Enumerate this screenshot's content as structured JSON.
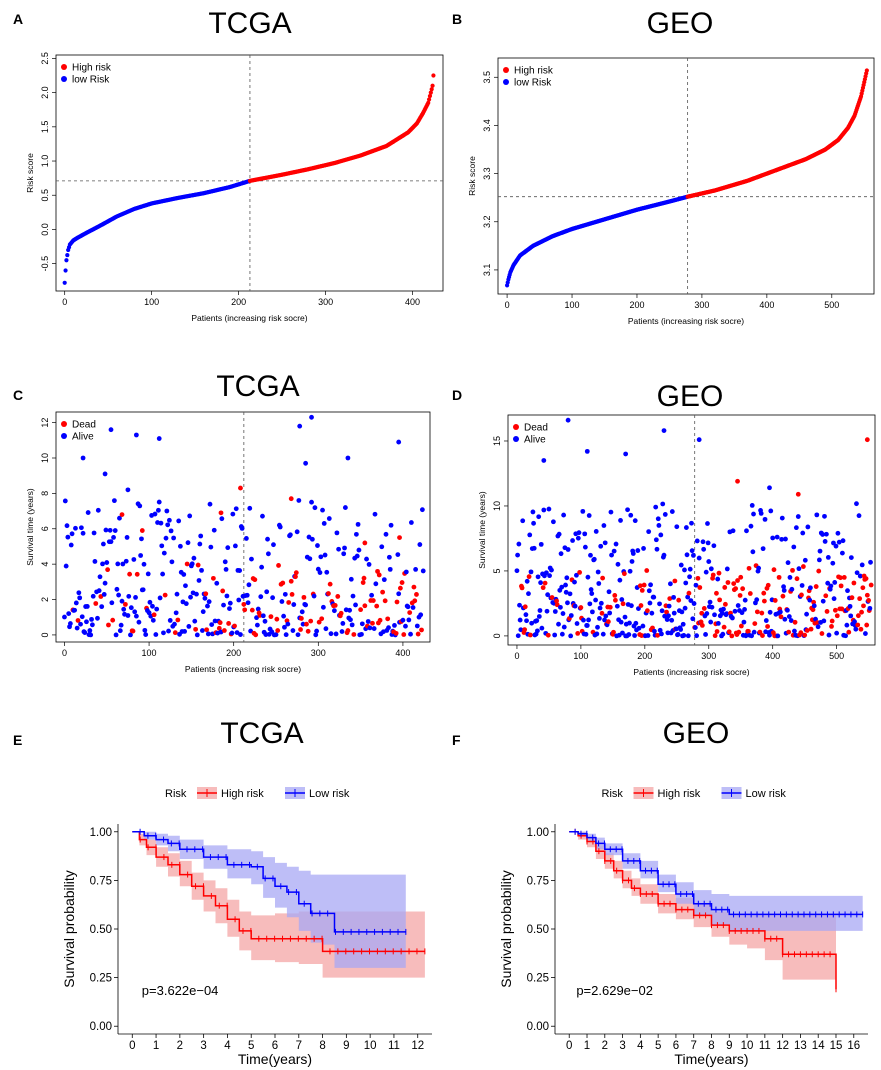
{
  "colors": {
    "high": "#ff0000",
    "low": "#0000ff",
    "high_band": "#f4a6a6",
    "low_band": "#a8a8f4"
  },
  "chart_data": [
    {
      "panel": "A",
      "type": "scatter",
      "title": "TCGA",
      "xlabel": "Patients (increasing risk socre)",
      "ylabel": "Risk score",
      "xlim": [
        -10,
        435
      ],
      "ylim": [
        -0.9,
        2.55
      ],
      "xticks": [
        "0",
        "100",
        "200",
        "300",
        "400"
      ],
      "xtick_values": [
        0,
        100,
        200,
        300,
        400
      ],
      "yticks": [
        "-0.5",
        "0.0",
        "0.5",
        "1.0",
        "1.5",
        "2.0",
        "2.5"
      ],
      "ytick_values": [
        -0.5,
        0,
        0.5,
        1,
        1.5,
        2,
        2.5
      ],
      "legend": [
        "High risk",
        "low Risk"
      ],
      "legend_position": "top-left",
      "n_patients": 425,
      "cutoff_index": 213,
      "cutoff_value": 0.71,
      "curve_x": [
        0,
        1,
        2,
        4,
        6,
        10,
        15,
        25,
        40,
        60,
        80,
        100,
        130,
        160,
        190,
        213,
        250,
        280,
        310,
        340,
        370,
        395,
        405,
        412,
        418,
        421,
        423,
        425
      ],
      "curve_y": [
        -0.78,
        -0.6,
        -0.45,
        -0.3,
        -0.22,
        -0.16,
        -0.12,
        -0.05,
        0.05,
        0.19,
        0.3,
        0.38,
        0.46,
        0.53,
        0.62,
        0.71,
        0.8,
        0.88,
        0.97,
        1.08,
        1.22,
        1.42,
        1.55,
        1.7,
        1.85,
        2.0,
        2.1,
        2.4
      ]
    },
    {
      "panel": "B",
      "type": "scatter",
      "title": "GEO",
      "xlabel": "Patients (increasing risk socre)",
      "ylabel": "Risk score",
      "xlim": [
        -14,
        565
      ],
      "ylim": [
        3.05,
        3.54
      ],
      "xticks": [
        "0",
        "100",
        "200",
        "300",
        "400",
        "500"
      ],
      "xtick_values": [
        0,
        100,
        200,
        300,
        400,
        500
      ],
      "yticks": [
        "3.1",
        "3.2",
        "3.3",
        "3.4",
        "3.5"
      ],
      "ytick_values": [
        3.1,
        3.2,
        3.3,
        3.4,
        3.5
      ],
      "legend": [
        "High risk",
        "low Risk"
      ],
      "legend_position": "top-left",
      "n_patients": 555,
      "cutoff_index": 278,
      "cutoff_value": 3.252,
      "curve_x": [
        0,
        2,
        5,
        10,
        20,
        40,
        70,
        100,
        150,
        200,
        250,
        278,
        320,
        370,
        420,
        460,
        490,
        510,
        525,
        535,
        545,
        550,
        555
      ],
      "curve_y": [
        3.068,
        3.08,
        3.095,
        3.11,
        3.13,
        3.15,
        3.17,
        3.185,
        3.205,
        3.225,
        3.242,
        3.252,
        3.265,
        3.285,
        3.31,
        3.33,
        3.35,
        3.37,
        3.395,
        3.42,
        3.46,
        3.49,
        3.52
      ]
    },
    {
      "panel": "C",
      "type": "scatter",
      "title": "TCGA",
      "xlabel": "Patients (increasing risk socre)",
      "ylabel": "Survival time (years)",
      "xlim": [
        -10,
        432
      ],
      "ylim": [
        -0.4,
        12.6
      ],
      "xticks": [
        "0",
        "100",
        "200",
        "300",
        "400"
      ],
      "xtick_values": [
        0,
        100,
        200,
        300,
        400
      ],
      "yticks": [
        "0",
        "2",
        "4",
        "6",
        "8",
        "10",
        "12"
      ],
      "ytick_values": [
        0,
        2,
        4,
        6,
        8,
        10,
        12
      ],
      "legend": [
        "Dead",
        "Alive"
      ],
      "legend_position": "top-left",
      "n_patients": 425,
      "cutoff_index": 212,
      "note": "points: survival time per patient; red = dead, blue = alive; dead fraction rises right of cutoff",
      "highlight_points": [
        {
          "x": 22,
          "y": 10.0,
          "status": "Alive"
        },
        {
          "x": 55,
          "y": 11.6,
          "status": "Alive"
        },
        {
          "x": 85,
          "y": 11.3,
          "status": "Alive"
        },
        {
          "x": 112,
          "y": 11.1,
          "status": "Alive"
        },
        {
          "x": 48,
          "y": 9.1,
          "status": "Alive"
        },
        {
          "x": 75,
          "y": 8.2,
          "status": "Alive"
        },
        {
          "x": 68,
          "y": 6.8,
          "status": "Dead"
        },
        {
          "x": 92,
          "y": 5.9,
          "status": "Dead"
        },
        {
          "x": 208,
          "y": 8.3,
          "status": "Dead"
        },
        {
          "x": 185,
          "y": 6.9,
          "status": "Dead"
        },
        {
          "x": 268,
          "y": 7.7,
          "status": "Dead"
        },
        {
          "x": 278,
          "y": 11.8,
          "status": "Alive"
        },
        {
          "x": 292,
          "y": 12.3,
          "status": "Alive"
        },
        {
          "x": 285,
          "y": 9.7,
          "status": "Alive"
        },
        {
          "x": 335,
          "y": 10.0,
          "status": "Alive"
        },
        {
          "x": 395,
          "y": 10.9,
          "status": "Alive"
        },
        {
          "x": 396,
          "y": 5.5,
          "status": "Dead"
        },
        {
          "x": 355,
          "y": 5.2,
          "status": "Dead"
        }
      ]
    },
    {
      "panel": "D",
      "type": "scatter",
      "title": "GEO",
      "xlabel": "Patients (increasing risk socre)",
      "ylabel": "Survival time (years)",
      "xlim": [
        -14,
        560
      ],
      "ylim": [
        -0.7,
        17.0
      ],
      "xticks": [
        "0",
        "100",
        "200",
        "300",
        "400",
        "500"
      ],
      "xtick_values": [
        0,
        100,
        200,
        300,
        400,
        500
      ],
      "yticks": [
        "0",
        "5",
        "10",
        "15"
      ],
      "ytick_values": [
        0,
        5,
        10,
        15
      ],
      "legend": [
        "Dead",
        "Alive"
      ],
      "legend_position": "top-left",
      "n_patients": 555,
      "cutoff_index": 278,
      "note": "points: survival time per patient; red = dead, blue = alive; dead fraction rises right of cutoff",
      "highlight_points": [
        {
          "x": 80,
          "y": 16.6,
          "status": "Alive"
        },
        {
          "x": 230,
          "y": 15.8,
          "status": "Alive"
        },
        {
          "x": 285,
          "y": 15.1,
          "status": "Alive"
        },
        {
          "x": 548,
          "y": 15.1,
          "status": "Dead"
        },
        {
          "x": 110,
          "y": 14.2,
          "status": "Alive"
        },
        {
          "x": 170,
          "y": 14.0,
          "status": "Alive"
        },
        {
          "x": 42,
          "y": 13.5,
          "status": "Alive"
        },
        {
          "x": 440,
          "y": 10.9,
          "status": "Dead"
        },
        {
          "x": 345,
          "y": 11.9,
          "status": "Dead"
        },
        {
          "x": 395,
          "y": 11.4,
          "status": "Alive"
        }
      ]
    },
    {
      "panel": "E",
      "type": "line",
      "title": "TCGA",
      "xlabel": "Time(years)",
      "ylabel": "Survival probability",
      "xlim": [
        -0.6,
        12.6
      ],
      "ylim": [
        -0.04,
        1.04
      ],
      "xticks": [
        "0",
        "1",
        "2",
        "3",
        "4",
        "5",
        "6",
        "7",
        "8",
        "9",
        "10",
        "11",
        "12"
      ],
      "xtick_values": [
        0,
        1,
        2,
        3,
        4,
        5,
        6,
        7,
        8,
        9,
        10,
        11,
        12
      ],
      "yticks": [
        "0.00",
        "0.25",
        "0.50",
        "0.75",
        "1.00"
      ],
      "ytick_values": [
        0,
        0.25,
        0.5,
        0.75,
        1.0
      ],
      "legend_title": "Risk",
      "legend": [
        "High risk",
        "Low risk"
      ],
      "legend_position": "top",
      "pvalue": "p=3.622e−04",
      "series": [
        {
          "name": "High risk",
          "x": [
            0,
            0.3,
            0.6,
            1.0,
            1.5,
            2.0,
            2.5,
            3.0,
            3.5,
            4.0,
            4.5,
            5.0,
            5.5,
            6.0,
            7.0,
            8.0,
            9.0,
            10.0,
            12.3
          ],
          "y": [
            1.0,
            0.96,
            0.92,
            0.87,
            0.83,
            0.78,
            0.72,
            0.67,
            0.62,
            0.55,
            0.49,
            0.45,
            0.45,
            0.45,
            0.45,
            0.385,
            0.385,
            0.385,
            0.385
          ],
          "lower": [
            1.0,
            0.93,
            0.88,
            0.82,
            0.77,
            0.72,
            0.65,
            0.59,
            0.53,
            0.46,
            0.39,
            0.34,
            0.34,
            0.33,
            0.32,
            0.25,
            0.25,
            0.25,
            0.25
          ],
          "upper": [
            1.0,
            0.99,
            0.96,
            0.92,
            0.89,
            0.85,
            0.79,
            0.75,
            0.71,
            0.65,
            0.59,
            0.57,
            0.57,
            0.58,
            0.59,
            0.59,
            0.59,
            0.59,
            0.59
          ]
        },
        {
          "name": "Low risk",
          "x": [
            0,
            0.5,
            1.0,
            1.5,
            2.0,
            3.0,
            4.0,
            5.0,
            5.5,
            6.0,
            6.5,
            7.0,
            7.5,
            8.0,
            8.5,
            11.5
          ],
          "y": [
            1.0,
            0.98,
            0.96,
            0.94,
            0.91,
            0.87,
            0.83,
            0.82,
            0.76,
            0.72,
            0.69,
            0.63,
            0.58,
            0.58,
            0.485,
            0.485
          ],
          "lower": [
            1.0,
            0.96,
            0.93,
            0.9,
            0.86,
            0.81,
            0.76,
            0.73,
            0.66,
            0.61,
            0.56,
            0.49,
            0.43,
            0.42,
            0.3,
            0.3
          ],
          "upper": [
            1.0,
            1.0,
            0.99,
            0.98,
            0.96,
            0.93,
            0.91,
            0.9,
            0.87,
            0.84,
            0.82,
            0.8,
            0.78,
            0.78,
            0.78,
            0.78
          ]
        }
      ]
    },
    {
      "panel": "F",
      "type": "line",
      "title": "GEO",
      "xlabel": "Time(years)",
      "ylabel": "Survival probability",
      "xlim": [
        -0.8,
        16.8
      ],
      "ylim": [
        -0.04,
        1.04
      ],
      "xticks": [
        "0",
        "1",
        "2",
        "3",
        "4",
        "5",
        "6",
        "7",
        "8",
        "9",
        "10",
        "11",
        "12",
        "13",
        "14",
        "15",
        "16"
      ],
      "xtick_values": [
        0,
        1,
        2,
        3,
        4,
        5,
        6,
        7,
        8,
        9,
        10,
        11,
        12,
        13,
        14,
        15,
        16
      ],
      "yticks": [
        "0.00",
        "0.25",
        "0.50",
        "0.75",
        "1.00"
      ],
      "ytick_values": [
        0,
        0.25,
        0.5,
        0.75,
        1.0
      ],
      "legend_title": "Risk",
      "legend": [
        "High risk",
        "Low risk"
      ],
      "legend_position": "top",
      "pvalue": "p=2.629e−02",
      "series": [
        {
          "name": "High risk",
          "x": [
            0,
            0.5,
            1.0,
            1.5,
            2.0,
            2.5,
            3.0,
            3.5,
            4.0,
            5.0,
            6.0,
            7.0,
            8.0,
            9.0,
            10.0,
            11.0,
            12.0,
            14.0,
            15.0
          ],
          "y": [
            1.0,
            0.98,
            0.95,
            0.9,
            0.85,
            0.8,
            0.75,
            0.71,
            0.68,
            0.63,
            0.6,
            0.57,
            0.52,
            0.49,
            0.49,
            0.45,
            0.37,
            0.37,
            0.19
          ],
          "lower": [
            1.0,
            0.96,
            0.92,
            0.86,
            0.81,
            0.76,
            0.71,
            0.67,
            0.63,
            0.58,
            0.55,
            0.51,
            0.46,
            0.42,
            0.4,
            0.34,
            0.24,
            0.24,
            0.24
          ],
          "upper": [
            1.0,
            1.0,
            0.97,
            0.93,
            0.89,
            0.85,
            0.8,
            0.76,
            0.73,
            0.68,
            0.66,
            0.63,
            0.59,
            0.57,
            0.57,
            0.57,
            0.57,
            0.57,
            0.57
          ]
        },
        {
          "name": "Low risk",
          "x": [
            0,
            0.5,
            1.0,
            1.5,
            2.0,
            3.0,
            4.0,
            5.0,
            6.0,
            7.0,
            8.0,
            9.0,
            16.5
          ],
          "y": [
            1.0,
            0.99,
            0.97,
            0.94,
            0.91,
            0.85,
            0.8,
            0.73,
            0.68,
            0.63,
            0.6,
            0.575,
            0.575
          ],
          "lower": [
            1.0,
            0.98,
            0.95,
            0.91,
            0.88,
            0.81,
            0.76,
            0.69,
            0.63,
            0.57,
            0.52,
            0.49,
            0.49
          ],
          "upper": [
            1.0,
            1.0,
            0.99,
            0.97,
            0.94,
            0.89,
            0.85,
            0.78,
            0.74,
            0.7,
            0.68,
            0.67,
            0.67
          ]
        }
      ]
    }
  ]
}
